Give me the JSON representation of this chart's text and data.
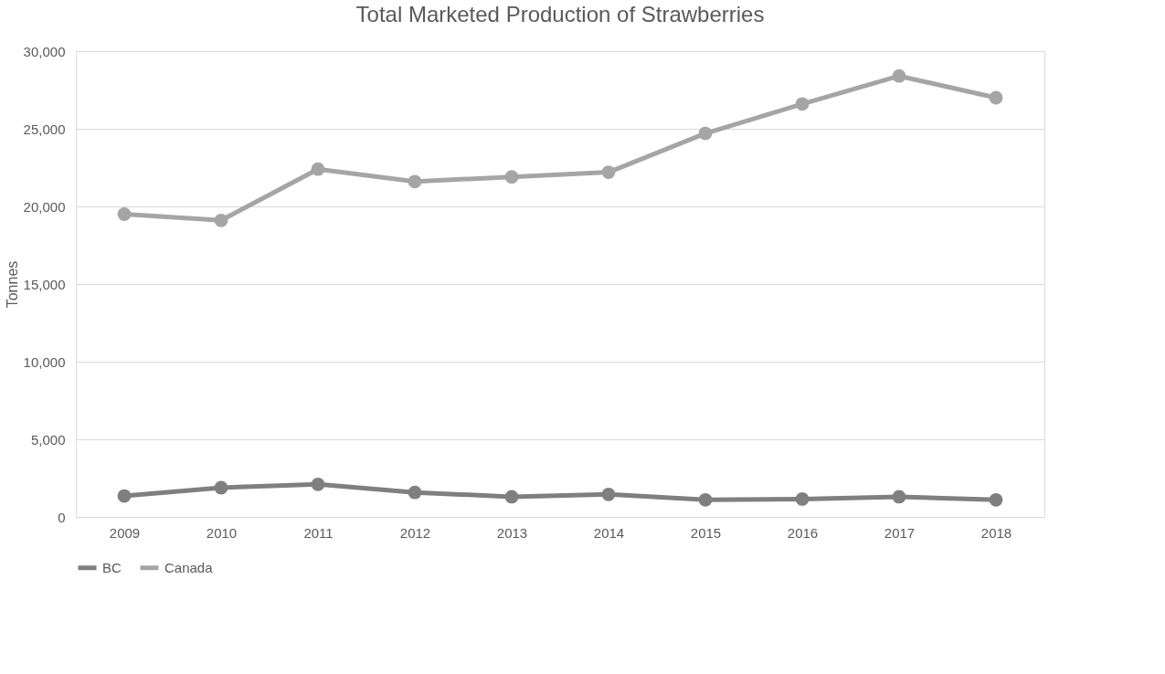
{
  "chart_data": {
    "type": "line",
    "title": "Total Marketed Production of Strawberries",
    "ylabel": "Tonnes",
    "categories": [
      "2009",
      "2010",
      "2011",
      "2012",
      "2013",
      "2014",
      "2015",
      "2016",
      "2017",
      "2018"
    ],
    "series": [
      {
        "name": "BC",
        "color": "#7f7f7f",
        "values": [
          1350,
          1880,
          2100,
          1580,
          1300,
          1450,
          1100,
          1150,
          1300,
          1100
        ]
      },
      {
        "name": "Canada",
        "color": "#a5a5a5",
        "values": [
          19500,
          19100,
          22400,
          21600,
          21900,
          22200,
          24700,
          26600,
          28400,
          27000
        ]
      }
    ],
    "ylim": [
      0,
      30000
    ],
    "yticks": [
      {
        "value": 0,
        "label": "0"
      },
      {
        "value": 5000,
        "label": "5,000"
      },
      {
        "value": 10000,
        "label": "10,000"
      },
      {
        "value": 15000,
        "label": "15,000"
      },
      {
        "value": 20000,
        "label": "20,000"
      },
      {
        "value": 25000,
        "label": "25,000"
      },
      {
        "value": 30000,
        "label": "30,000"
      }
    ],
    "grid": "y",
    "legend": "bottom",
    "marker": "circle",
    "line_style": "solid"
  }
}
